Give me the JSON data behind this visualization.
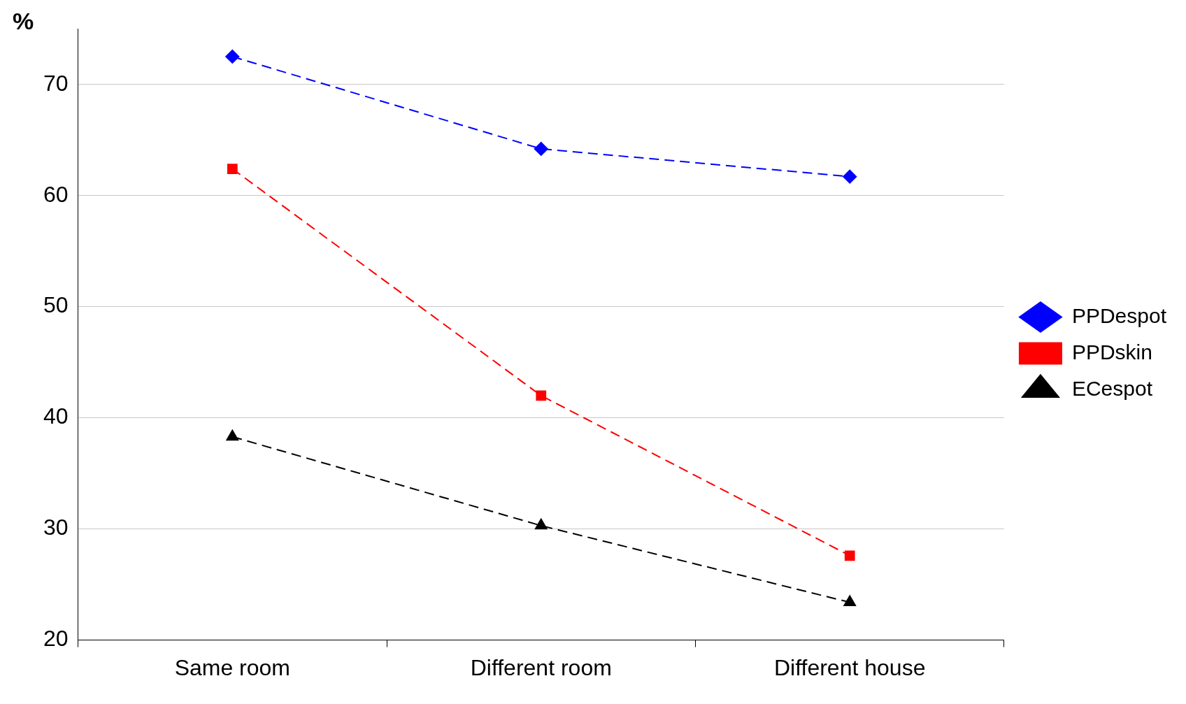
{
  "chart_data": {
    "type": "line",
    "ylabel": "%",
    "categories": [
      "Same room",
      "Different room",
      "Different house"
    ],
    "series": [
      {
        "name": "PPDespot",
        "color": "#0000ff",
        "values": [
          72.5,
          64.2,
          61.7
        ],
        "marker": "diamond"
      },
      {
        "name": "PPDskin",
        "color": "#ff0000",
        "values": [
          62.4,
          42.0,
          27.6
        ],
        "marker": "square"
      },
      {
        "name": "ECespot",
        "color": "#000000",
        "values": [
          38.3,
          30.3,
          23.4
        ],
        "marker": "triangle"
      }
    ],
    "ylim": [
      20,
      75
    ],
    "yticks": [
      20,
      30,
      40,
      50,
      60,
      70
    ],
    "grid": "y",
    "legend": "right",
    "line_style": "dashed"
  }
}
